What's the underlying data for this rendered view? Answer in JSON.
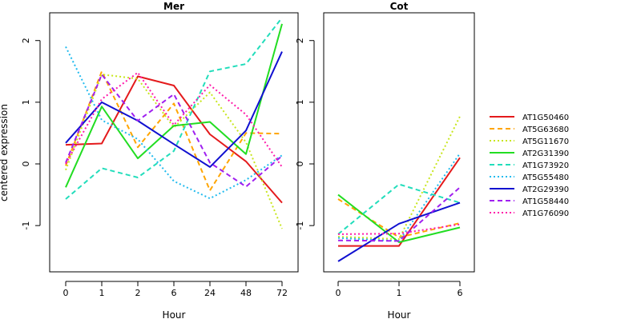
{
  "ylabel": "centered expression",
  "chart_data": [
    {
      "type": "line",
      "title": "Mer",
      "xlabel": "Hour",
      "ylabel": "centered expression",
      "categories": [
        "0",
        "1",
        "2",
        "6",
        "24",
        "48",
        "72"
      ],
      "ylim": [
        -1.75,
        2.45
      ],
      "yticks": [
        -1,
        0,
        1,
        2
      ],
      "series": [
        {
          "name": "AT1G50460",
          "values": [
            0.31,
            0.33,
            1.42,
            1.27,
            0.48,
            0.04,
            -0.63
          ]
        },
        {
          "name": "AT5G63680",
          "values": [
            -0.03,
            1.5,
            0.27,
            0.98,
            -0.43,
            0.5,
            0.49
          ]
        },
        {
          "name": "AT5G11670",
          "values": [
            -0.1,
            1.45,
            1.38,
            0.59,
            1.16,
            0.35,
            -1.05
          ]
        },
        {
          "name": "AT2G31390",
          "values": [
            -0.38,
            0.93,
            0.09,
            0.62,
            0.68,
            0.16,
            2.27
          ]
        },
        {
          "name": "AT1G73920",
          "values": [
            -0.57,
            -0.07,
            -0.22,
            0.21,
            1.5,
            1.62,
            2.37
          ]
        },
        {
          "name": "AT5G55480",
          "values": [
            1.9,
            0.71,
            0.4,
            -0.28,
            -0.56,
            -0.26,
            0.14
          ]
        },
        {
          "name": "AT2G29390",
          "values": [
            0.34,
            1.0,
            0.7,
            0.32,
            -0.05,
            0.54,
            1.82
          ]
        },
        {
          "name": "AT1G58440",
          "values": [
            0.02,
            1.45,
            0.7,
            1.13,
            0.02,
            -0.37,
            0.13
          ]
        },
        {
          "name": "AT1G76090",
          "values": [
            0.0,
            1.05,
            1.48,
            0.63,
            1.28,
            0.8,
            -0.05
          ]
        }
      ]
    },
    {
      "type": "line",
      "title": "Cot",
      "xlabel": "Hour",
      "categories": [
        "0",
        "1",
        "6"
      ],
      "ylim": [
        -1.75,
        2.45
      ],
      "yticks": [
        -1,
        0,
        1,
        2
      ],
      "series": [
        {
          "name": "AT1G50460",
          "values": [
            -1.33,
            -1.33,
            0.1
          ]
        },
        {
          "name": "AT5G63680",
          "values": [
            -0.57,
            -1.19,
            -0.96
          ]
        },
        {
          "name": "AT5G11670",
          "values": [
            -1.18,
            -1.22,
            0.77
          ]
        },
        {
          "name": "AT2G31390",
          "values": [
            -0.5,
            -1.27,
            -1.03
          ]
        },
        {
          "name": "AT1G73920",
          "values": [
            -1.14,
            -0.33,
            -0.63
          ]
        },
        {
          "name": "AT5G55480",
          "values": [
            -1.2,
            -1.25,
            0.17
          ]
        },
        {
          "name": "AT2G29390",
          "values": [
            -1.58,
            -0.97,
            -0.63
          ]
        },
        {
          "name": "AT1G58440",
          "values": [
            -1.24,
            -1.25,
            -0.38
          ]
        },
        {
          "name": "AT1G76090",
          "values": [
            -1.14,
            -1.13,
            -0.98
          ]
        }
      ]
    }
  ],
  "legend": {
    "position": "right",
    "items": [
      {
        "label": "AT1G50460",
        "color": "#e41a1c",
        "dash": "solid"
      },
      {
        "label": "AT5G63680",
        "color": "#ffa500",
        "dash": "dashed"
      },
      {
        "label": "AT5G11670",
        "color": "#c8e61e",
        "dash": "dotted"
      },
      {
        "label": "AT2G31390",
        "color": "#22dd22",
        "dash": "solid"
      },
      {
        "label": "AT1G73920",
        "color": "#22ddbb",
        "dash": "dashed"
      },
      {
        "label": "AT5G55480",
        "color": "#22bbee",
        "dash": "dotted"
      },
      {
        "label": "AT2G29390",
        "color": "#1010d0",
        "dash": "solid"
      },
      {
        "label": "AT1G58440",
        "color": "#a020f0",
        "dash": "dashed"
      },
      {
        "label": "AT1G76090",
        "color": "#ff1aaa",
        "dash": "dotted"
      }
    ]
  }
}
